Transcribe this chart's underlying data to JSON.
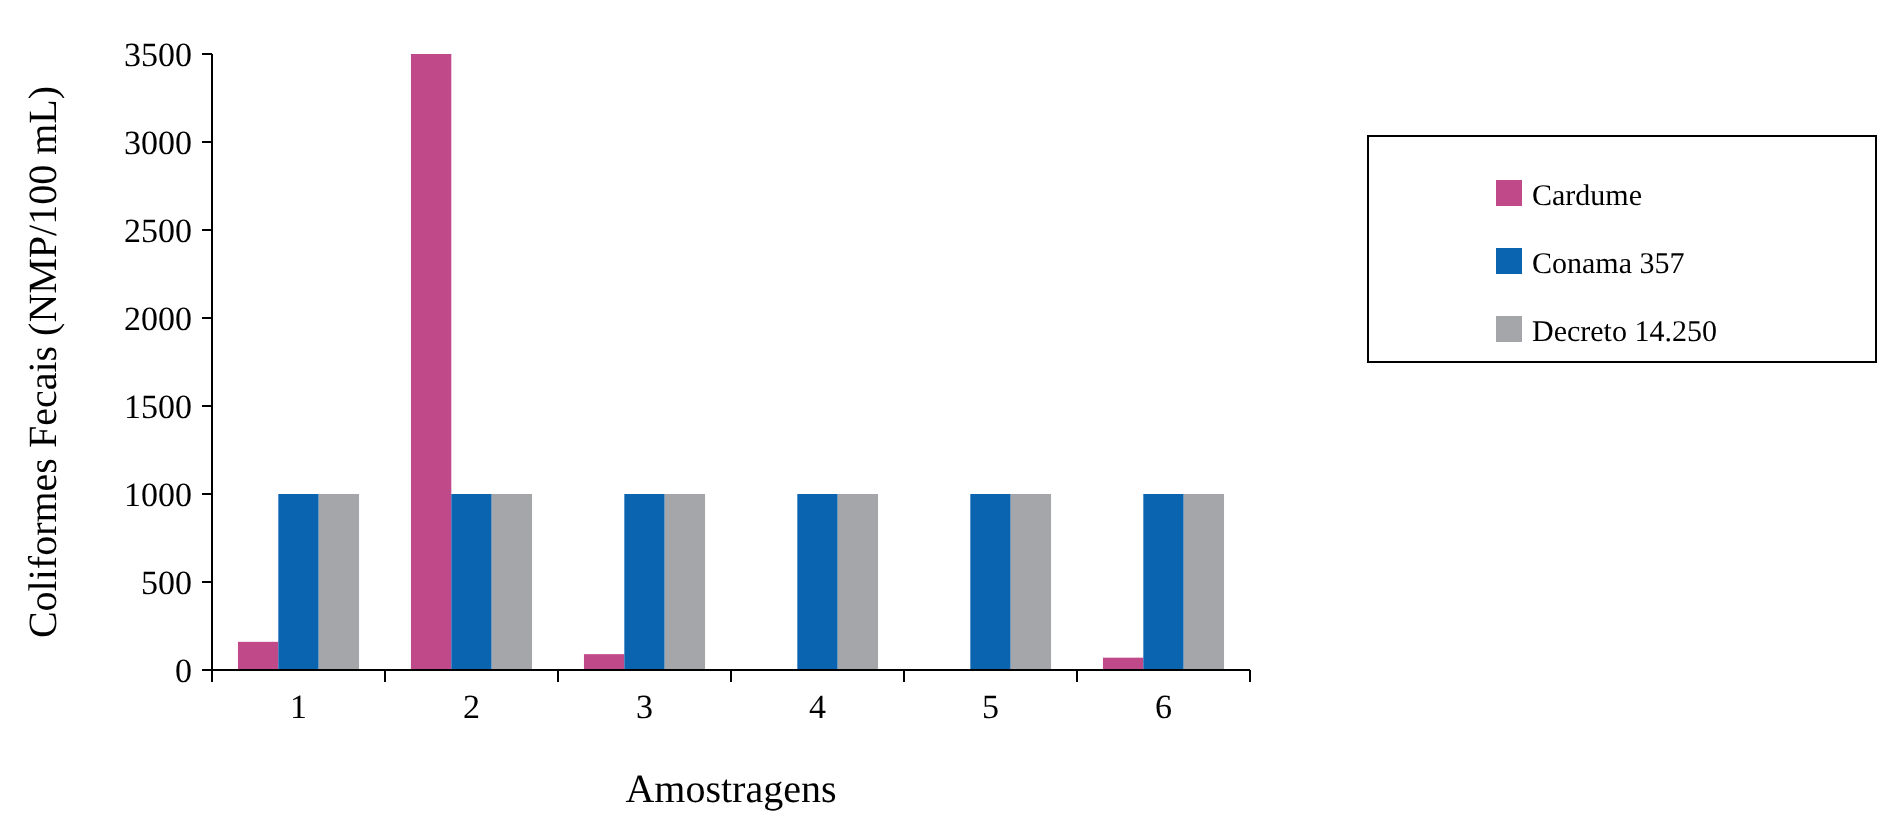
{
  "chart_data": {
    "type": "bar",
    "xlabel": "Amostragens",
    "ylabel": "Coliformes Fecais (NMP/100 mL)",
    "categories": [
      "1",
      "2",
      "3",
      "4",
      "5",
      "6"
    ],
    "series": [
      {
        "name": "Cardume",
        "color": "#c0498a",
        "values": [
          160,
          3500,
          90,
          0,
          0,
          70
        ]
      },
      {
        "name": "Conama 357",
        "color": "#0b64b0",
        "values": [
          1000,
          1000,
          1000,
          1000,
          1000,
          1000
        ]
      },
      {
        "name": "Decreto 14.250",
        "color": "#a5a6aa",
        "values": [
          1000,
          1000,
          1000,
          1000,
          1000,
          1000
        ]
      }
    ],
    "ylim": [
      0,
      3500
    ],
    "yticks": [
      0,
      500,
      1000,
      1500,
      2000,
      2500,
      3000,
      3500
    ],
    "grid": false,
    "legend": "right"
  }
}
